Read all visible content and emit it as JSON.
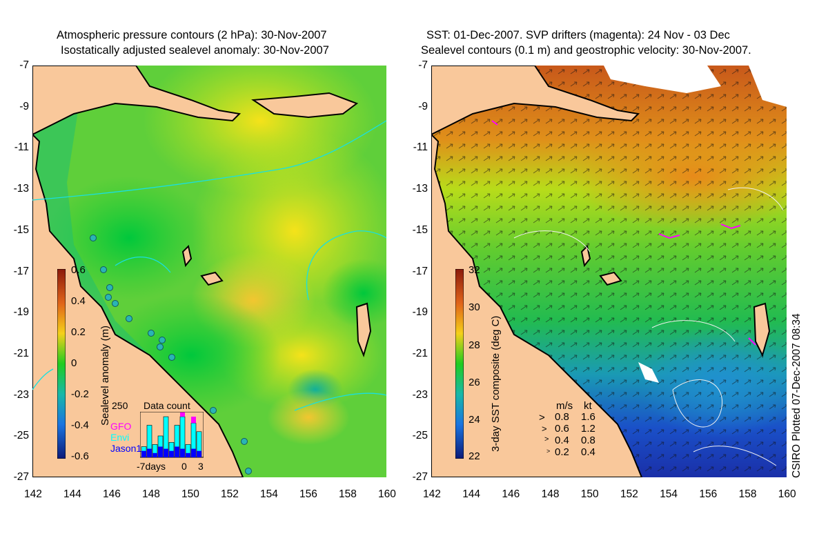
{
  "left_panel": {
    "title_line1": "Atmospheric pressure contours (2 hPa): 30-Nov-2007",
    "title_line2": "Isostatically adjusted sealevel anomaly: 30-Nov-2007",
    "colorbar": {
      "label": "Sealevel anomaly (m)",
      "ticks": [
        "0.6",
        "0.4",
        "0.2",
        "0",
        "-0.2",
        "-0.4",
        "-0.6"
      ]
    },
    "inset": {
      "title": "Data count",
      "ymax_label": "250",
      "legend": [
        {
          "name": "GFO",
          "color": "#ff00ff"
        },
        {
          "name": "Envi",
          "color": "#00ffff"
        },
        {
          "name": "Jason1",
          "color": "#0000ff"
        }
      ],
      "x_labels": [
        "-7days",
        "0",
        "3"
      ],
      "bars_envi": [
        0.25,
        0.75,
        0.3,
        0.5,
        0.95,
        0.35,
        0.75,
        0.95,
        0.3,
        0.8,
        0.6
      ],
      "bars_jason": [
        0.15,
        0.2,
        0.1,
        0.25,
        0.2,
        0.15,
        0.25,
        0.2,
        0.1,
        0.2,
        0.15
      ],
      "bars_gfo": [
        0,
        0,
        0,
        0,
        0,
        0,
        0,
        0.1,
        0,
        0.15,
        0
      ]
    }
  },
  "right_panel": {
    "title_line1": "SST: 01-Dec-2007. SVP drifters (magenta): 24 Nov - 03 Dec",
    "title_line2": "Sealevel contours (0.1 m) and geostrophic velocity: 30-Nov-2007.",
    "colorbar": {
      "label": "3-day SST composite (deg C)",
      "ticks": [
        "32",
        "30",
        "28",
        "26",
        "24",
        "22"
      ]
    },
    "velocity_legend": {
      "units_ms": "m/s",
      "units_kt": "kt",
      "rows": [
        {
          "ms": "0.8",
          "kt": "1.6"
        },
        {
          "ms": "0.6",
          "kt": "1.2"
        },
        {
          "ms": "0.4",
          "kt": "0.8"
        },
        {
          "ms": "0.2",
          "kt": "0.4"
        }
      ]
    },
    "credit": "CSIRO Plotted 07-Dec-2007 08:34"
  },
  "axes": {
    "y_ticks": [
      "-7",
      "-9",
      "-11",
      "-13",
      "-15",
      "-17",
      "-19",
      "-21",
      "-23",
      "-25",
      "-27"
    ],
    "x_ticks": [
      "142",
      "144",
      "146",
      "148",
      "150",
      "152",
      "154",
      "156",
      "158",
      "160"
    ]
  },
  "colors": {
    "land": "#f9c89b",
    "coast": "#000000",
    "contour": "#19e0e0",
    "drifter": "#ff00ff"
  }
}
